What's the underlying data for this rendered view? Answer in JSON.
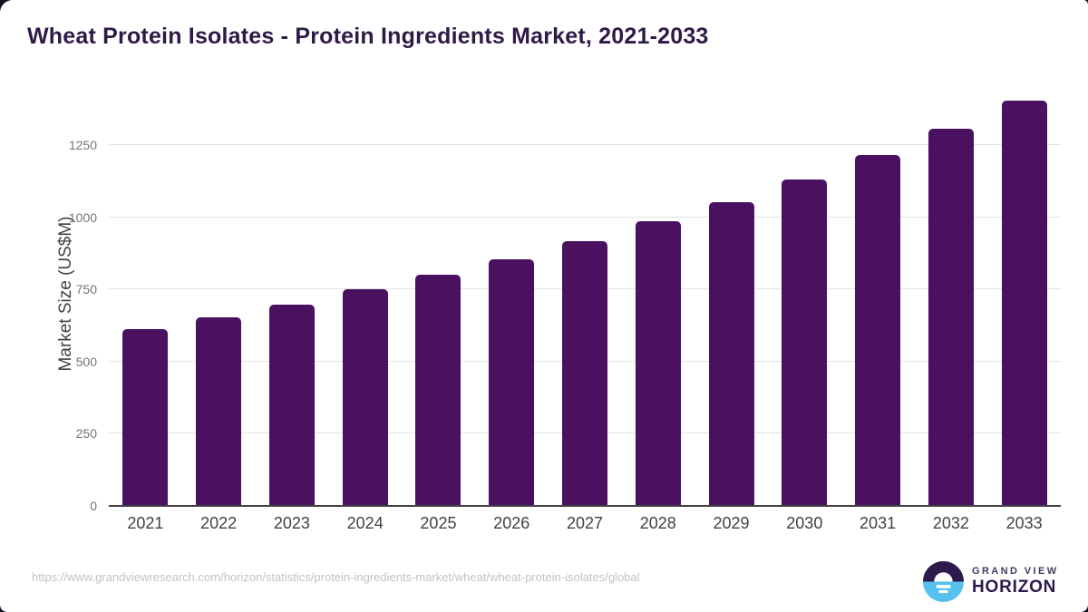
{
  "chart_data": {
    "type": "bar",
    "title": "Wheat Protein Isolates - Protein Ingredients Market, 2021-2033",
    "categories": [
      "2021",
      "2022",
      "2023",
      "2024",
      "2025",
      "2026",
      "2027",
      "2028",
      "2029",
      "2030",
      "2031",
      "2032",
      "2033"
    ],
    "values": [
      612,
      653,
      697,
      750,
      801,
      855,
      917,
      986,
      1052,
      1131,
      1215,
      1306,
      1405
    ],
    "xlabel": "",
    "ylabel": "Market Size (US$M)",
    "ylim": [
      0,
      1438
    ],
    "yticks": [
      0,
      250,
      500,
      750,
      1000,
      1250
    ],
    "grid": true,
    "legend": false,
    "bar_color": "#491160"
  },
  "colors": {
    "accent_purple": "#491160",
    "title_purple": "#2e1a47",
    "axis_line": "#424242",
    "gridline": "#e2e2e2",
    "ytick_text": "#757575",
    "xtick_text": "#424242",
    "url_text": "#c2c2c2",
    "logo_blue": "#56c1ec",
    "logo_purple": "#2d1b4e"
  },
  "footer": {
    "source_url": "https://www.grandviewresearch.com/horizon/statistics/protein-ingredients-market/wheat/wheat-protein-isolates/global",
    "logo": {
      "brand_top": "GRAND VIEW",
      "brand_bottom": "HORIZON"
    }
  }
}
